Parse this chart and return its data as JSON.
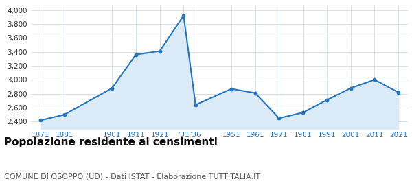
{
  "years": [
    1871,
    1881,
    1901,
    1911,
    1921,
    1931,
    1936,
    1951,
    1961,
    1971,
    1981,
    1991,
    2001,
    2011,
    2021
  ],
  "x_labels": [
    "1871",
    "1881",
    "1901",
    "1911",
    "1921",
    "’31",
    "’36",
    "1951",
    "1961",
    "1971",
    "1981",
    "1991",
    "2001",
    "2011",
    "2021"
  ],
  "population": [
    2420,
    2500,
    2880,
    3360,
    3410,
    3920,
    2640,
    2870,
    2810,
    2450,
    2530,
    2710,
    2880,
    3000,
    2820
  ],
  "line_color": "#2475bf",
  "fill_color": "#daeaf7",
  "marker_color": "#2475bf",
  "background_color": "#ffffff",
  "grid_color": "#c8d8e8",
  "ylim": [
    2300,
    4060
  ],
  "yticks": [
    2400,
    2600,
    2800,
    3000,
    3200,
    3400,
    3600,
    3800,
    4000
  ],
  "title": "Popolazione residente ai censimenti",
  "subtitle": "COMUNE DI OSOPPO (UD) - Dati ISTAT - Elaborazione TUTTITALIA.IT",
  "title_fontsize": 11,
  "subtitle_fontsize": 8,
  "tick_fontsize": 7.5,
  "x_label_color": "#2475bf"
}
